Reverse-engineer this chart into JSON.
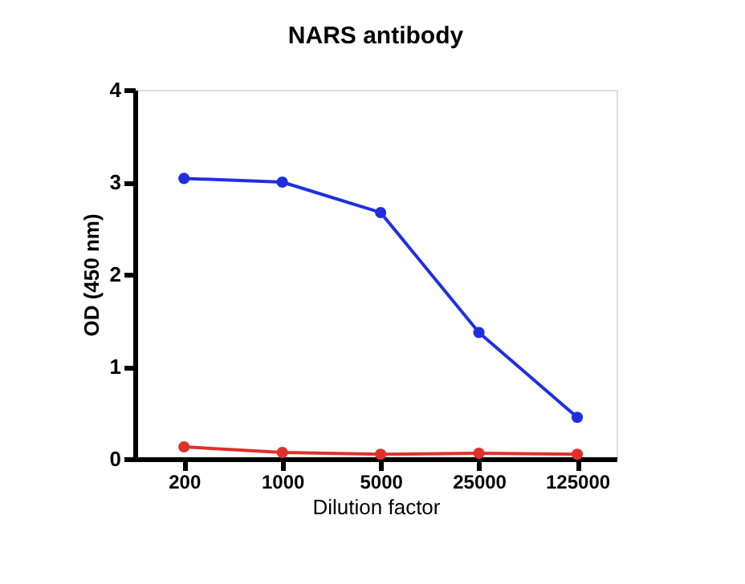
{
  "chart_data": {
    "type": "line",
    "title": "NARS antibody",
    "xlabel": "Dilution factor",
    "ylabel": "OD (450 nm)",
    "categories": [
      "200",
      "1000",
      "5000",
      "25000",
      "125000"
    ],
    "series": [
      {
        "color": "#1f2fe0",
        "values": [
          3.04,
          3.0,
          2.67,
          1.37,
          0.45
        ]
      },
      {
        "color": "#e0302a",
        "values": [
          0.13,
          0.07,
          0.05,
          0.06,
          0.05
        ]
      }
    ],
    "ylim": [
      0,
      4
    ],
    "yticks": [
      0,
      1,
      2,
      3,
      4
    ],
    "marker": "circle",
    "line_style": "solid"
  }
}
